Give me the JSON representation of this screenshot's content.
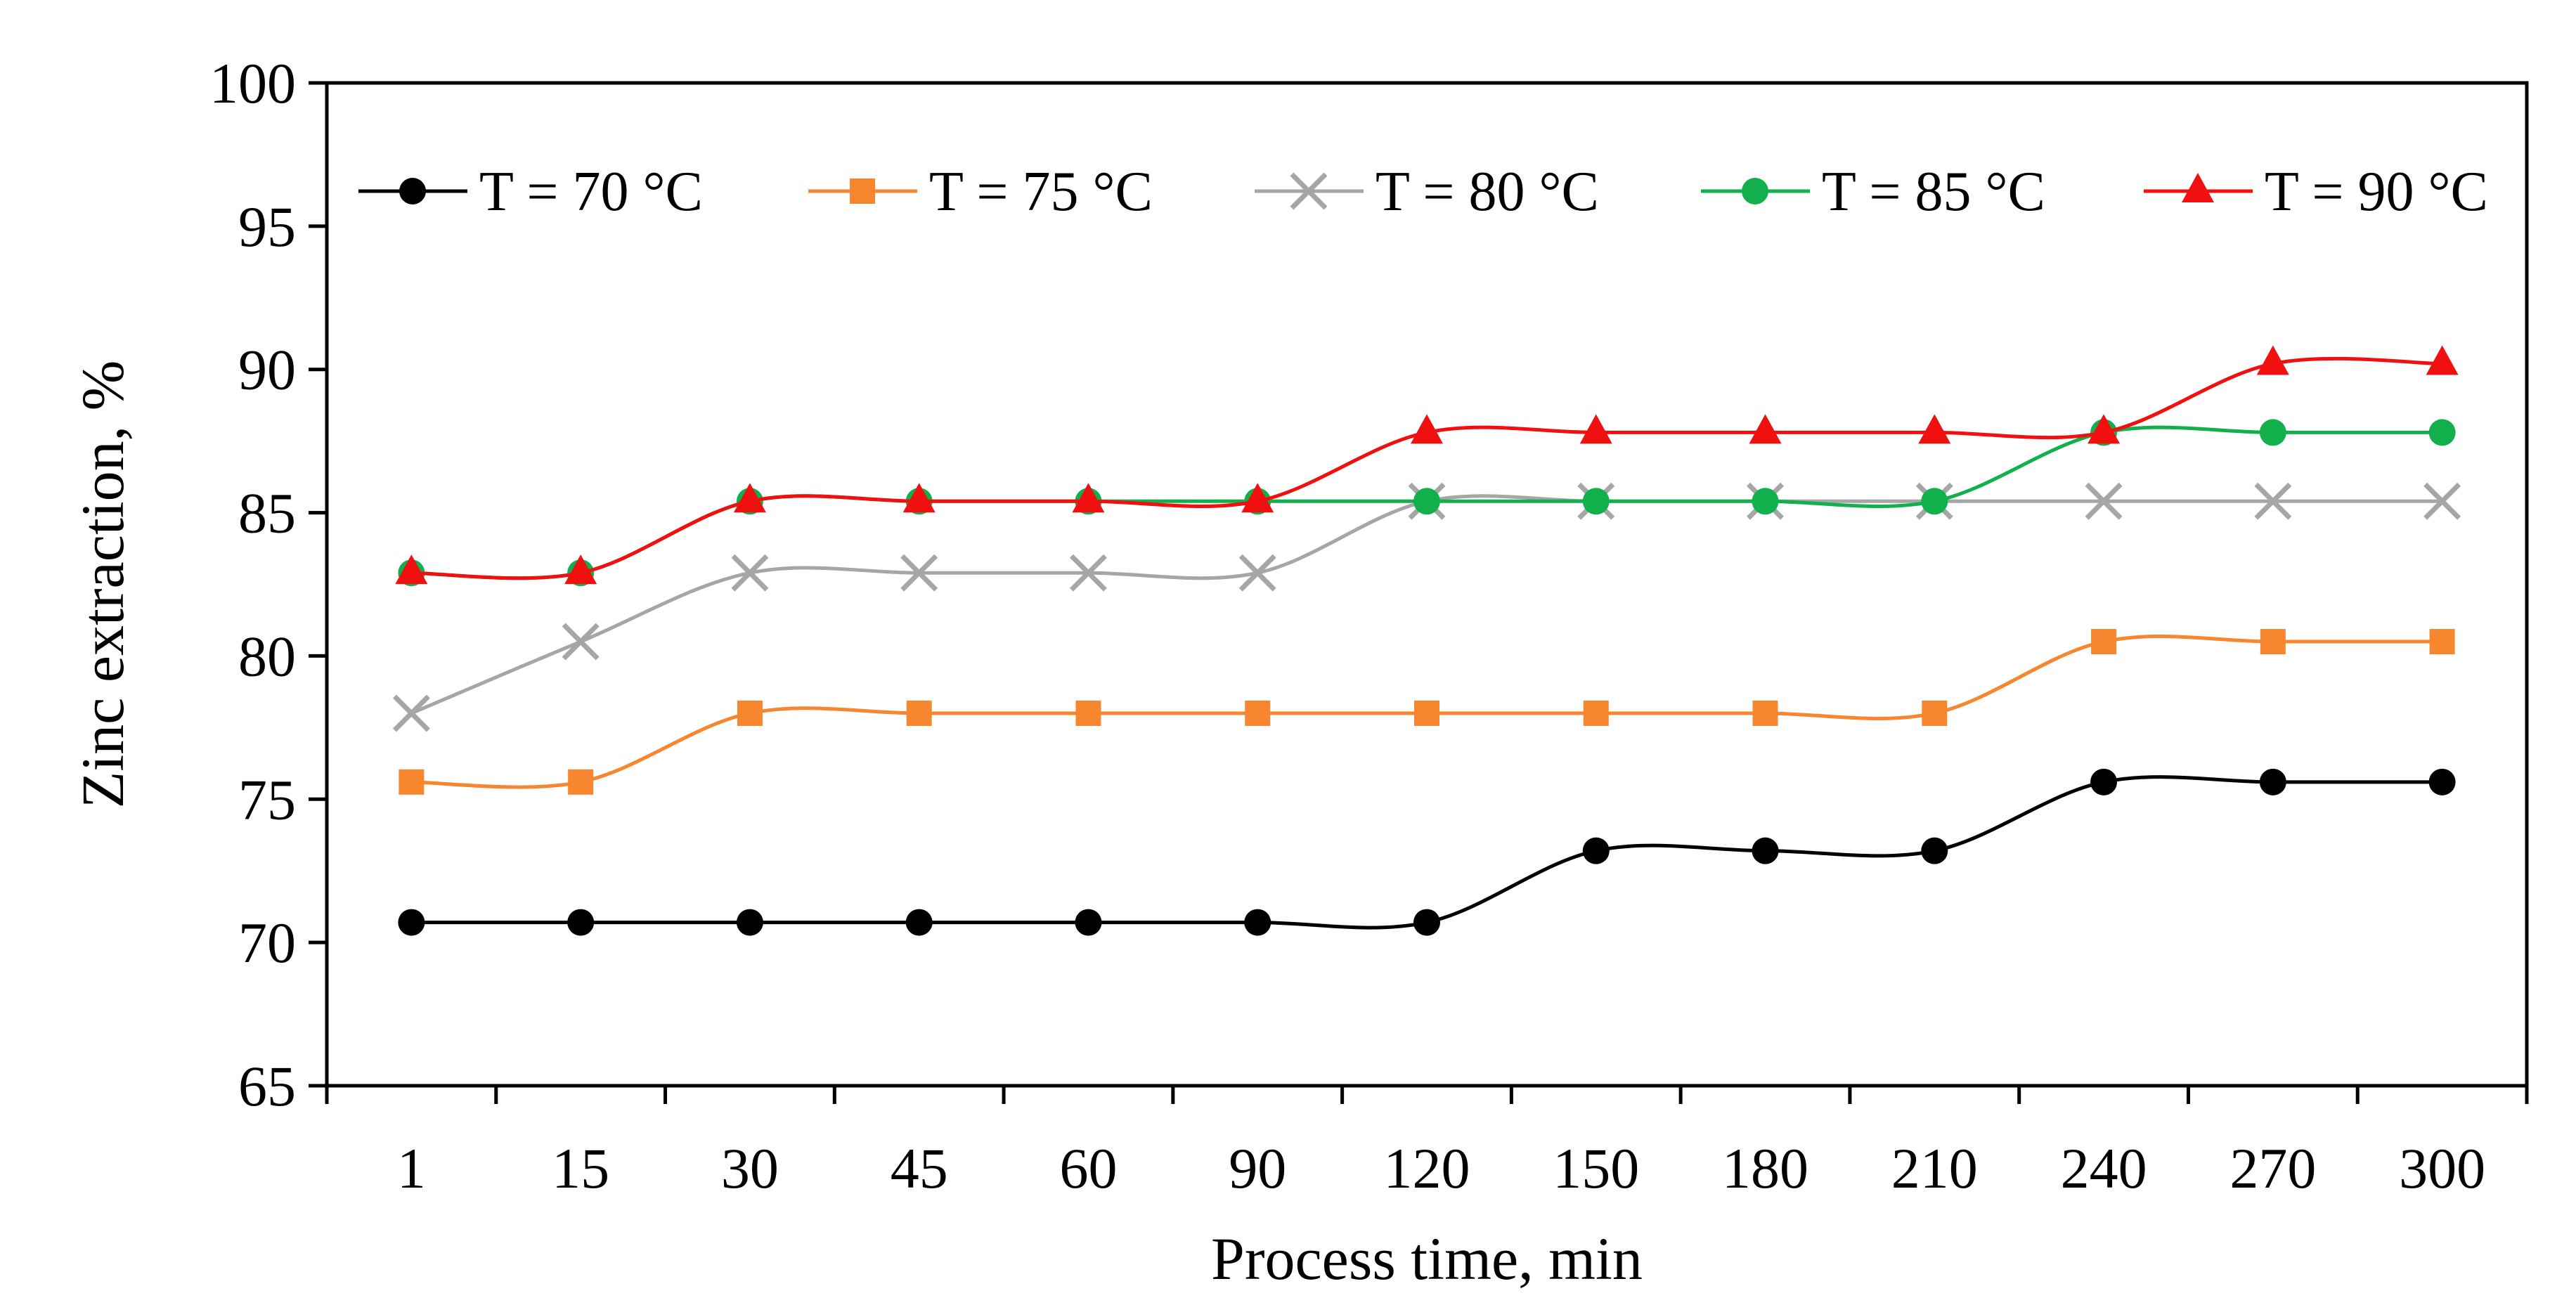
{
  "chart_data": {
    "type": "line",
    "title": "",
    "xlabel": "Process time, min",
    "ylabel": "Zinc extraction, %",
    "categories": [
      "1",
      "15",
      "30",
      "45",
      "60",
      "90",
      "120",
      "150",
      "180",
      "210",
      "240",
      "270",
      "300"
    ],
    "ylim": [
      65,
      100
    ],
    "yticks": [
      65,
      70,
      75,
      80,
      85,
      90,
      95,
      100
    ],
    "grid": false,
    "smooth": true,
    "legend_position": "top",
    "series": [
      {
        "name": "T = 70 °C",
        "color": "#000000",
        "marker": "circle",
        "values": [
          70.7,
          70.7,
          70.7,
          70.7,
          70.7,
          70.7,
          70.7,
          73.2,
          73.2,
          73.2,
          75.6,
          75.6,
          75.6
        ]
      },
      {
        "name": "T = 75 °C",
        "color": "#F7862E",
        "marker": "square",
        "values": [
          75.6,
          75.6,
          78.0,
          78.0,
          78.0,
          78.0,
          78.0,
          78.0,
          78.0,
          78.0,
          80.5,
          80.5,
          80.5
        ]
      },
      {
        "name": "T = 80 °C",
        "color": "#A6A6A6",
        "marker": "cross",
        "values": [
          78.0,
          80.5,
          82.9,
          82.9,
          82.9,
          82.9,
          85.4,
          85.4,
          85.4,
          85.4,
          85.4,
          85.4,
          85.4
        ]
      },
      {
        "name": "T = 85 °C",
        "color": "#12B04C",
        "marker": "circle",
        "values": [
          82.9,
          82.9,
          85.4,
          85.4,
          85.4,
          85.4,
          85.4,
          85.4,
          85.4,
          85.4,
          87.8,
          87.8,
          87.8
        ]
      },
      {
        "name": "T = 90 °C",
        "color": "#F01010",
        "marker": "triangle",
        "values": [
          82.9,
          82.9,
          85.4,
          85.4,
          85.4,
          85.4,
          87.8,
          87.8,
          87.8,
          87.8,
          87.8,
          90.2,
          90.2
        ]
      }
    ]
  }
}
